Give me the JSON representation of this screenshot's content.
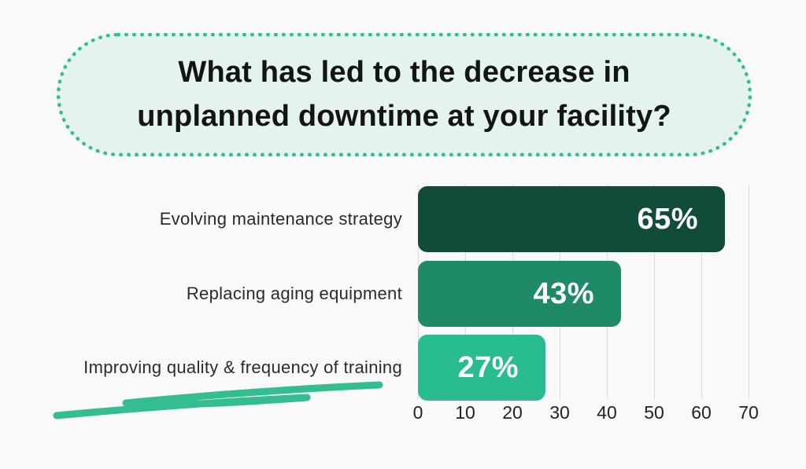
{
  "page": {
    "background": "#f9f9fa"
  },
  "title_bubble": {
    "line1": "What has led to the decrease in",
    "line2": "unplanned downtime at your facility?",
    "background": "#e4f3ed",
    "border_color": "#35bd92",
    "text_color": "#141414"
  },
  "chart_data": {
    "type": "bar",
    "orientation": "horizontal",
    "title": "What has led to the decrease in unplanned downtime at your facility?",
    "categories": [
      "Evolving maintenance strategy",
      "Replacing aging equipment",
      "Improving quality & frequency of training"
    ],
    "values": [
      65,
      43,
      27
    ],
    "value_labels": [
      "65%",
      "43%",
      "27%"
    ],
    "bar_colors": [
      "#114c3b",
      "#1f8a67",
      "#29bc91"
    ],
    "value_text_color": "#ffffff",
    "xlabel": "",
    "ylabel": "",
    "xlim": [
      0,
      70
    ],
    "x_ticks": [
      0,
      10,
      20,
      30,
      40,
      50,
      60,
      70
    ],
    "grid": true,
    "gridline_color": "#dcdcdc",
    "legend": "none"
  },
  "decoration": {
    "scribble_color": "#35bd92"
  }
}
